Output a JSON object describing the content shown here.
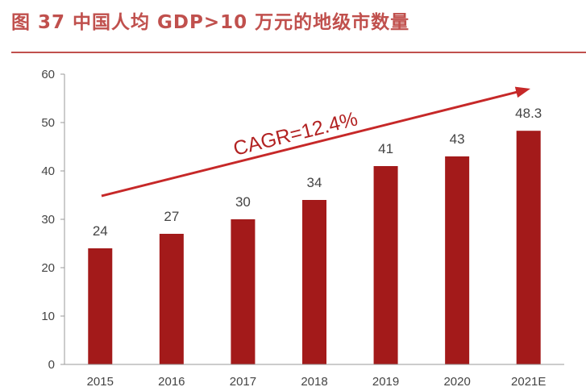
{
  "header": {
    "title": "图 37 中国人均 GDP>10 万元的地级市数量"
  },
  "chart_data": {
    "type": "bar",
    "title": "",
    "xlabel": "",
    "ylabel": "",
    "categories": [
      "2015",
      "2016",
      "2017",
      "2018",
      "2019",
      "2020",
      "2021E"
    ],
    "values": [
      24,
      27,
      30,
      34,
      41,
      43,
      48.3
    ],
    "data_labels": [
      "24",
      "27",
      "30",
      "34",
      "41",
      "43",
      "48.3"
    ],
    "yticks": [
      "0",
      "10",
      "20",
      "30",
      "40",
      "50",
      "60"
    ],
    "ylim": [
      0,
      60
    ],
    "grid": false,
    "legend": "none",
    "annotation": "CAGR=12.4%",
    "bar_color": "#A31A1A",
    "arrow_color": "#C62828"
  }
}
